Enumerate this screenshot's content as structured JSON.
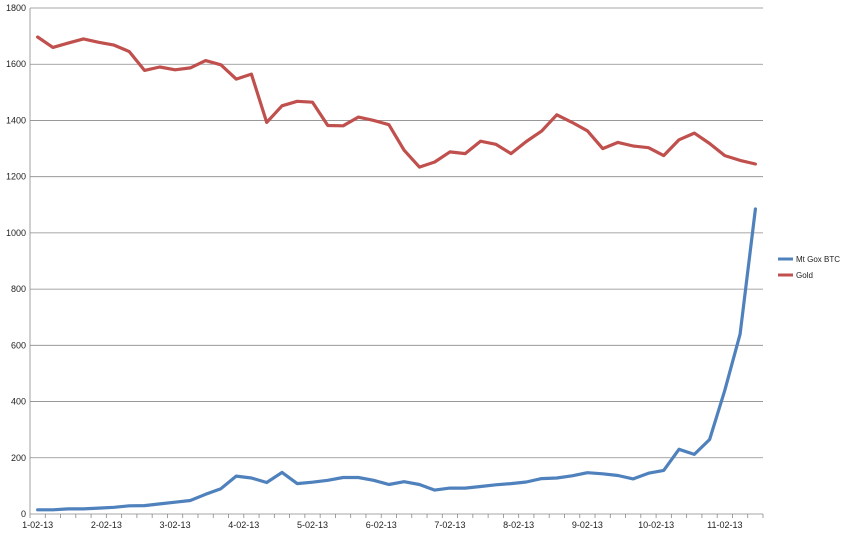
{
  "chart_data": {
    "type": "line",
    "title": "",
    "xlabel": "",
    "ylabel": "",
    "ylim": [
      0,
      1800
    ],
    "yticks": [
      0,
      200,
      400,
      600,
      800,
      1000,
      1200,
      1400,
      1600,
      1800
    ],
    "x_tick_labels": [
      "1-02-13",
      "2-02-13",
      "3-02-13",
      "4-02-13",
      "5-02-13",
      "6-02-13",
      "7-02-13",
      "8-02-13",
      "9-02-13",
      "10-02-13",
      "11-02-13"
    ],
    "grid": "horizontal",
    "legend_position": "right",
    "series": [
      {
        "name": "Mt Gox BTC",
        "color": "#4f81bd",
        "values": [
          15,
          15,
          18,
          18,
          21,
          24,
          29,
          30,
          36,
          42,
          48,
          70,
          90,
          135,
          128,
          112,
          148,
          108,
          113,
          120,
          130,
          130,
          120,
          105,
          115,
          105,
          85,
          92,
          92,
          98,
          104,
          108,
          114,
          126,
          128,
          136,
          147,
          143,
          137,
          125,
          145,
          155,
          230,
          212,
          265,
          440,
          640,
          1085
        ]
      },
      {
        "name": "Gold",
        "color": "#c0504d",
        "values": [
          1697,
          1660,
          1675,
          1690,
          1678,
          1668,
          1645,
          1578,
          1590,
          1580,
          1587,
          1613,
          1598,
          1547,
          1565,
          1393,
          1452,
          1468,
          1465,
          1382,
          1381,
          1412,
          1400,
          1385,
          1294,
          1234,
          1252,
          1288,
          1282,
          1326,
          1315,
          1282,
          1325,
          1362,
          1420,
          1393,
          1363,
          1300,
          1322,
          1309,
          1303,
          1275,
          1331,
          1355,
          1318,
          1275,
          1258,
          1245
        ]
      }
    ]
  }
}
